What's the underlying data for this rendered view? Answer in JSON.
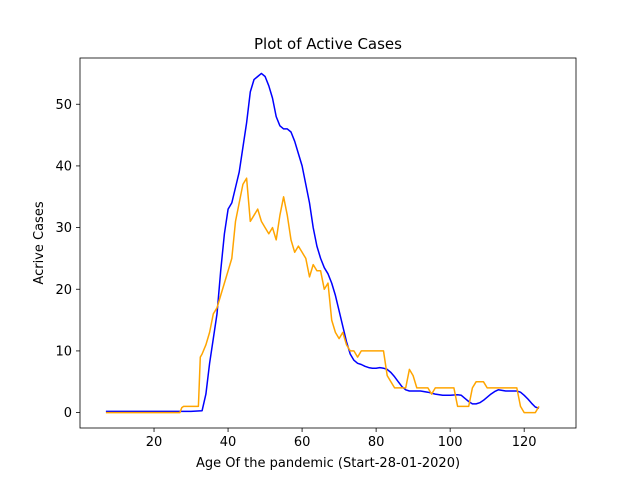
{
  "chart_data": {
    "type": "line",
    "title": "Plot of Active Cases",
    "xlabel": "Age Of the pandemic (Start-28-01-2020)",
    "ylabel": "Acrive Cases",
    "xlim": [
      0,
      134
    ],
    "ylim": [
      -2.5,
      57.5
    ],
    "xticks": [
      20,
      40,
      60,
      80,
      100,
      120
    ],
    "yticks": [
      0,
      10,
      20,
      30,
      40,
      50
    ],
    "grid": false,
    "legend": "none",
    "series": [
      {
        "color": "#0000ff",
        "points": [
          [
            7,
            0.2
          ],
          [
            10,
            0.2
          ],
          [
            20,
            0.2
          ],
          [
            30,
            0.2
          ],
          [
            33,
            0.3
          ],
          [
            34,
            3
          ],
          [
            35,
            8
          ],
          [
            36,
            12
          ],
          [
            37,
            16
          ],
          [
            38,
            23
          ],
          [
            39,
            29
          ],
          [
            40,
            33
          ],
          [
            41,
            34
          ],
          [
            42,
            36.5
          ],
          [
            43,
            39
          ],
          [
            44,
            43
          ],
          [
            45,
            47
          ],
          [
            46,
            52
          ],
          [
            47,
            54
          ],
          [
            48,
            54.5
          ],
          [
            49,
            55
          ],
          [
            50,
            54.5
          ],
          [
            51,
            53
          ],
          [
            52,
            51
          ],
          [
            53,
            48
          ],
          [
            54,
            46.5
          ],
          [
            55,
            46
          ],
          [
            56,
            46
          ],
          [
            57,
            45.5
          ],
          [
            58,
            44
          ],
          [
            59,
            42
          ],
          [
            60,
            40
          ],
          [
            61,
            37
          ],
          [
            62,
            34
          ],
          [
            63,
            30
          ],
          [
            64,
            27
          ],
          [
            65,
            25
          ],
          [
            66,
            23.5
          ],
          [
            67,
            22.5
          ],
          [
            68,
            21
          ],
          [
            69,
            19
          ],
          [
            70,
            16.5
          ],
          [
            71,
            14
          ],
          [
            72,
            11.5
          ],
          [
            73,
            9.5
          ],
          [
            74,
            8.5
          ],
          [
            75,
            8
          ],
          [
            76,
            7.8
          ],
          [
            77,
            7.5
          ],
          [
            78,
            7.3
          ],
          [
            79,
            7.2
          ],
          [
            80,
            7.2
          ],
          [
            81,
            7.3
          ],
          [
            82,
            7.2
          ],
          [
            83,
            7
          ],
          [
            84,
            6.5
          ],
          [
            85,
            5.8
          ],
          [
            86,
            5
          ],
          [
            87,
            4.2
          ],
          [
            88,
            3.7
          ],
          [
            89,
            3.5
          ],
          [
            90,
            3.5
          ],
          [
            92,
            3.5
          ],
          [
            94,
            3.3
          ],
          [
            96,
            3
          ],
          [
            98,
            2.8
          ],
          [
            100,
            2.8
          ],
          [
            102,
            2.9
          ],
          [
            103,
            2.8
          ],
          [
            104,
            2.3
          ],
          [
            105,
            1.8
          ],
          [
            106,
            1.4
          ],
          [
            107,
            1.4
          ],
          [
            108,
            1.6
          ],
          [
            109,
            2
          ],
          [
            110,
            2.5
          ],
          [
            111,
            3
          ],
          [
            112,
            3.4
          ],
          [
            113,
            3.7
          ],
          [
            114,
            3.6
          ],
          [
            115,
            3.5
          ],
          [
            116,
            3.5
          ],
          [
            117,
            3.5
          ],
          [
            118,
            3.5
          ],
          [
            119,
            3.3
          ],
          [
            120,
            2.8
          ],
          [
            121,
            2.2
          ],
          [
            122,
            1.5
          ],
          [
            123,
            0.9
          ],
          [
            124,
            0.7
          ]
        ]
      },
      {
        "color": "#ffa500",
        "points": [
          [
            7,
            0
          ],
          [
            10,
            0
          ],
          [
            20,
            0
          ],
          [
            27,
            0
          ],
          [
            27.5,
            0.8
          ],
          [
            28,
            1
          ],
          [
            29,
            1
          ],
          [
            31,
            1
          ],
          [
            32,
            1
          ],
          [
            32.5,
            9
          ],
          [
            33,
            9.5
          ],
          [
            34,
            11
          ],
          [
            35,
            13
          ],
          [
            36,
            16
          ],
          [
            37,
            17
          ],
          [
            38,
            19
          ],
          [
            39,
            21
          ],
          [
            40,
            23
          ],
          [
            41,
            25
          ],
          [
            42,
            31
          ],
          [
            43,
            34
          ],
          [
            44,
            37
          ],
          [
            45,
            38
          ],
          [
            46,
            31
          ],
          [
            47,
            32
          ],
          [
            48,
            33
          ],
          [
            49,
            31
          ],
          [
            50,
            30
          ],
          [
            51,
            29
          ],
          [
            52,
            30
          ],
          [
            53,
            28
          ],
          [
            54,
            32
          ],
          [
            55,
            35
          ],
          [
            56,
            32
          ],
          [
            57,
            28
          ],
          [
            58,
            26
          ],
          [
            59,
            27
          ],
          [
            60,
            26
          ],
          [
            61,
            25
          ],
          [
            62,
            22
          ],
          [
            63,
            24
          ],
          [
            64,
            23
          ],
          [
            65,
            23
          ],
          [
            66,
            20
          ],
          [
            67,
            21
          ],
          [
            68,
            15
          ],
          [
            69,
            13
          ],
          [
            70,
            12
          ],
          [
            71,
            13
          ],
          [
            72,
            11
          ],
          [
            73,
            10
          ],
          [
            74,
            10
          ],
          [
            75,
            9
          ],
          [
            76,
            10
          ],
          [
            77,
            10
          ],
          [
            78,
            10
          ],
          [
            79,
            10
          ],
          [
            80,
            10
          ],
          [
            81,
            10
          ],
          [
            82,
            10
          ],
          [
            83,
            6
          ],
          [
            84,
            5
          ],
          [
            85,
            4
          ],
          [
            86,
            4
          ],
          [
            87,
            4
          ],
          [
            88,
            4
          ],
          [
            89,
            7
          ],
          [
            90,
            6
          ],
          [
            91,
            4
          ],
          [
            92,
            4
          ],
          [
            93,
            4
          ],
          [
            94,
            4
          ],
          [
            95,
            3
          ],
          [
            96,
            4
          ],
          [
            97,
            4
          ],
          [
            98,
            4
          ],
          [
            99,
            4
          ],
          [
            100,
            4
          ],
          [
            101,
            4
          ],
          [
            102,
            1
          ],
          [
            103,
            1
          ],
          [
            104,
            1
          ],
          [
            105,
            1
          ],
          [
            106,
            4
          ],
          [
            107,
            5
          ],
          [
            108,
            5
          ],
          [
            109,
            5
          ],
          [
            110,
            4
          ],
          [
            111,
            4
          ],
          [
            112,
            4
          ],
          [
            113,
            4
          ],
          [
            114,
            4
          ],
          [
            115,
            4
          ],
          [
            116,
            4
          ],
          [
            117,
            4
          ],
          [
            118,
            4
          ],
          [
            119,
            1
          ],
          [
            120,
            0
          ],
          [
            121,
            0
          ],
          [
            122,
            0
          ],
          [
            123,
            0
          ],
          [
            124,
            1
          ]
        ]
      }
    ]
  }
}
